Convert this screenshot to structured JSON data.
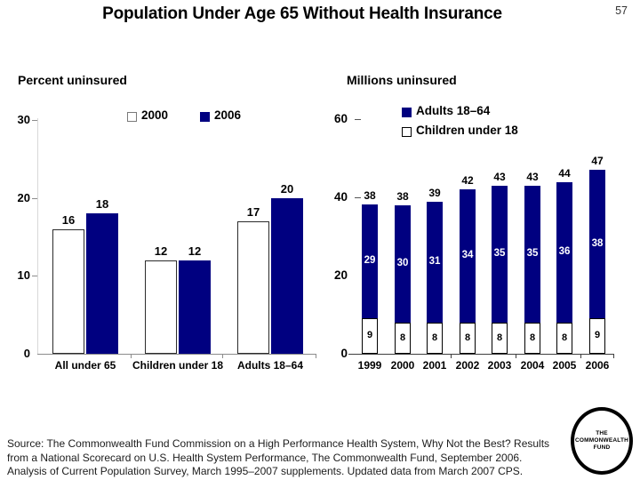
{
  "header": {
    "title": "Population Under Age 65 Without Health Insurance",
    "page_number": "57"
  },
  "chart_data": [
    {
      "type": "bar",
      "subtype": "grouped",
      "title": "Percent uninsured",
      "categories": [
        "All under 65",
        "Children under 18",
        "Adults 18–64"
      ],
      "series": [
        {
          "name": "2000",
          "values": [
            16,
            12,
            17
          ],
          "color": "#ffffff"
        },
        {
          "name": "2006",
          "values": [
            18,
            12,
            20
          ],
          "color": "#000080"
        }
      ],
      "legend": [
        {
          "label": "2000",
          "color": "#ffffff"
        },
        {
          "label": "2006",
          "color": "#000080"
        }
      ],
      "xlabel": "",
      "ylabel": "Percent uninsured",
      "ylim": [
        0,
        30
      ],
      "yticks": [
        0,
        10,
        20,
        30
      ],
      "grid": false,
      "legend_position": "top"
    },
    {
      "type": "bar",
      "subtype": "stacked",
      "title": "Millions uninsured",
      "categories": [
        "1999",
        "2000",
        "2001",
        "2002",
        "2003",
        "2004",
        "2005",
        "2006"
      ],
      "series": [
        {
          "name": "Children under 18",
          "values": [
            9,
            8,
            8,
            8,
            8,
            8,
            8,
            9
          ],
          "color": "#ffffff"
        },
        {
          "name": "Adults 18–64",
          "values": [
            29,
            30,
            31,
            34,
            35,
            35,
            36,
            38
          ],
          "color": "#000080"
        }
      ],
      "totals": [
        38,
        38,
        39,
        42,
        43,
        43,
        44,
        47
      ],
      "legend": [
        {
          "label": "Adults 18–64",
          "color": "#000080"
        },
        {
          "label": "Children under 18",
          "color": "#ffffff"
        }
      ],
      "xlabel": "",
      "ylabel": "Millions uninsured",
      "ylim": [
        0,
        60
      ],
      "yticks": [
        0,
        20,
        40,
        60
      ],
      "grid": false,
      "legend_position": "top-right"
    }
  ],
  "footer": {
    "source_lines": [
      "Source: The Commonwealth Fund Commission on a High Performance Health System, Why Not the Best? Results",
      "from a National Scorecard on U.S. Health System Performance, The Commonwealth Fund, September 2006.",
      "Analysis of Current Population Survey, March 1995–2007 supplements. Updated data from March 2007 CPS."
    ]
  },
  "logo": {
    "lines": [
      "THE",
      "COMMONWEALTH",
      "FUND"
    ]
  },
  "colors": {
    "navy": "#000080",
    "axis_light": "#d8d8d8",
    "axis_mid": "#8c8c8c",
    "axis_dark": "#3f3f3f"
  }
}
